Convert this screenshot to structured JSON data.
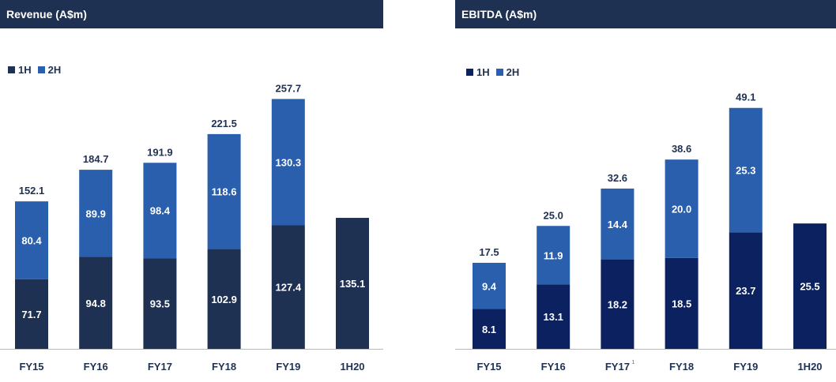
{
  "chart_data": [
    {
      "type": "bar",
      "stacked": true,
      "title": "Revenue (A$m)",
      "categories": [
        "FY15",
        "FY16",
        "FY17",
        "FY18",
        "FY19",
        "1H20"
      ],
      "category_notes": [
        "",
        "",
        "",
        "",
        "",
        ""
      ],
      "series": [
        {
          "name": "1H",
          "values": [
            71.7,
            94.8,
            93.5,
            102.9,
            127.4,
            135.1
          ],
          "color": "#1f3152"
        },
        {
          "name": "2H",
          "values": [
            80.4,
            89.9,
            98.4,
            118.6,
            130.3,
            null
          ],
          "color": "#2a5fad"
        }
      ],
      "totals": [
        "152.1",
        "184.7",
        "191.9",
        "221.5",
        "257.7",
        ""
      ],
      "legend_position": "top-left",
      "grid": false
    },
    {
      "type": "bar",
      "stacked": true,
      "title": "EBITDA (A$m)",
      "categories": [
        "FY15",
        "FY16",
        "FY17",
        "FY18",
        "FY19",
        "1H20"
      ],
      "category_notes": [
        "",
        "",
        "1",
        "",
        "",
        ""
      ],
      "series": [
        {
          "name": "1H",
          "values": [
            8.1,
            13.1,
            18.2,
            18.5,
            23.7,
            25.5
          ],
          "color": "#0b2160"
        },
        {
          "name": "2H",
          "values": [
            9.4,
            11.9,
            14.4,
            20.0,
            25.3,
            null
          ],
          "color": "#2a5fad"
        }
      ],
      "totals": [
        "17.5",
        "25.0",
        "32.6",
        "38.6",
        "49.1",
        ""
      ],
      "legend_position": "top-left",
      "grid": false
    }
  ]
}
